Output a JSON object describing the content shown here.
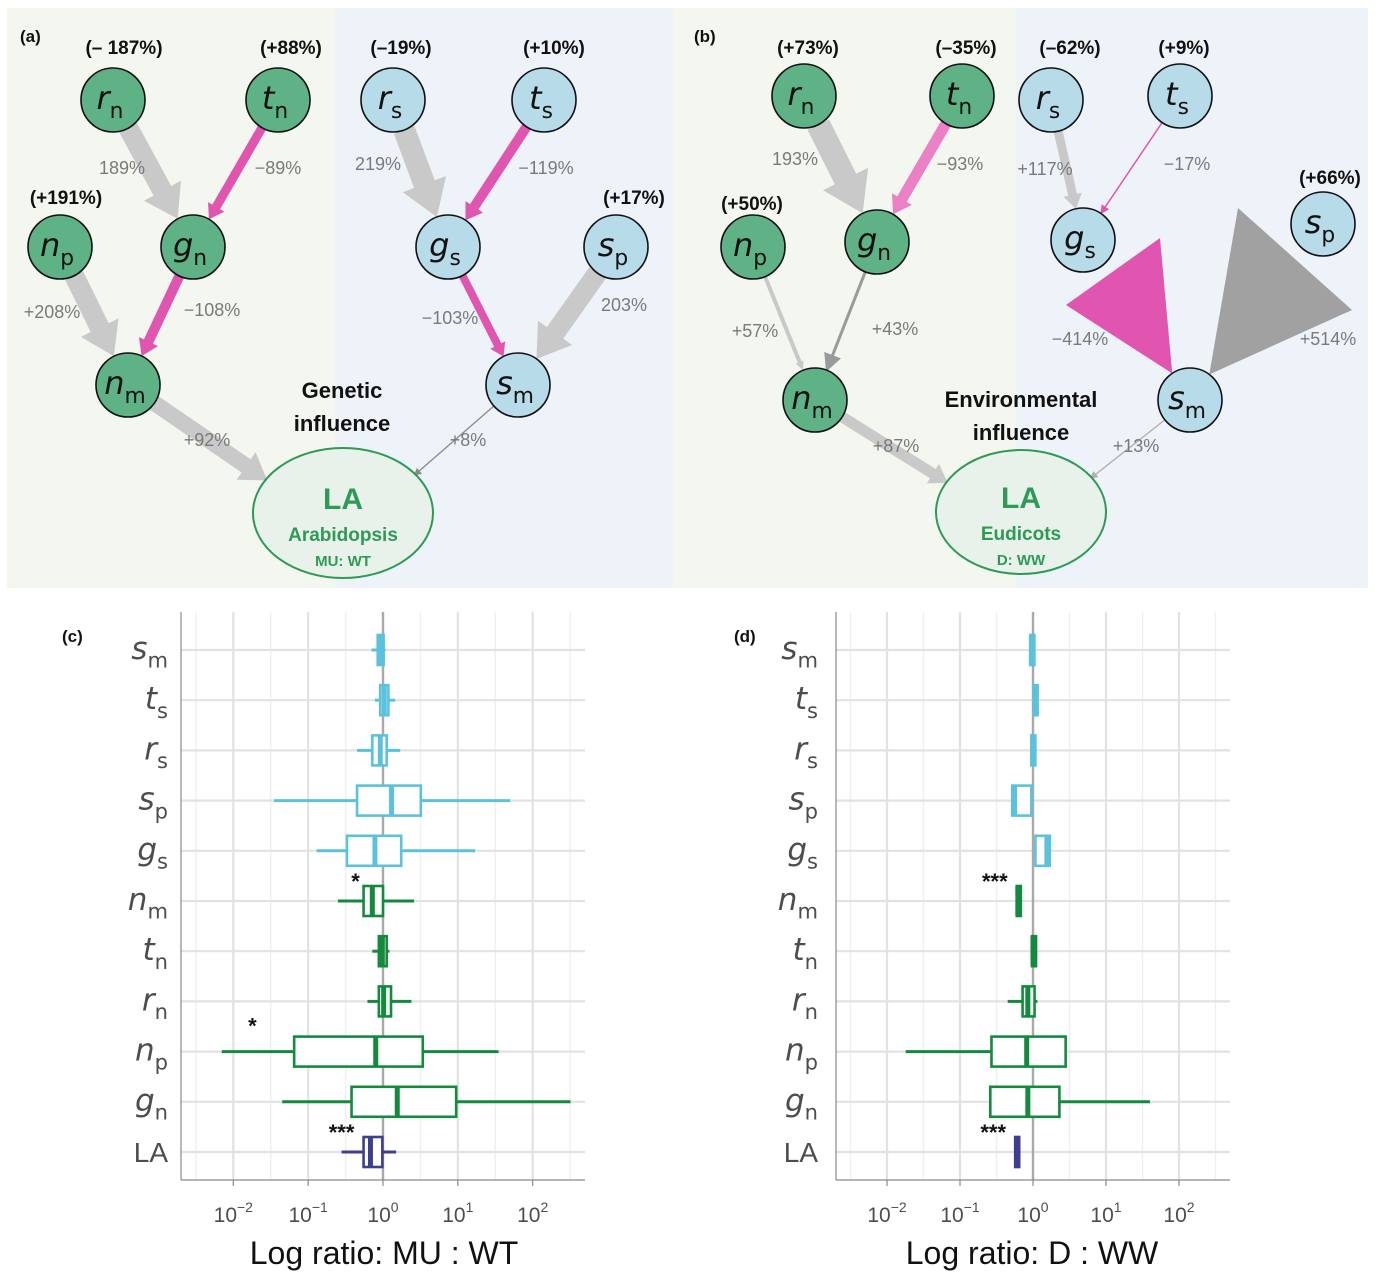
{
  "colors": {
    "green_node": "#5fb286",
    "blue_node": "#b7dbe8",
    "pink_edge": "#e055b0",
    "grey_edge": "#c9c9c9",
    "dark_grey_edge": "#9a9a9a",
    "green_box": "#138a3e",
    "blue_box": "#5bc2de",
    "navy_box": "#3f3f8f",
    "la_text": "#2e9a55",
    "panel_green_bg": "#f4f7ef",
    "panel_blue_bg": "#eef3f9"
  },
  "diagrams": [
    {
      "panel_label": "(a)",
      "center_label_1": "Genetic",
      "center_label_2": "influence",
      "la": {
        "title": "LA",
        "line1": "Arabidopsis",
        "line2": "MU: WT"
      },
      "node_changes": {
        "rn": "(– 187%)",
        "tn": "(+88%)",
        "np": "(+191%)",
        "rs": "(–19%)",
        "ts": "(+10%)",
        "sp": "(+17%)"
      },
      "edge_labels": {
        "rn_gn": "189%",
        "tn_gn": "−89%",
        "np_nm": "+208%",
        "gn_nm": "−108%",
        "nm_la": "+92%",
        "rs_gs": "219%",
        "ts_gs": "−119%",
        "gs_sm": "−103%",
        "sp_sm": "203%",
        "sm_la": "+8%"
      }
    },
    {
      "panel_label": "(b)",
      "center_label_1": "Environmental",
      "center_label_2": "influence",
      "la": {
        "title": "LA",
        "line1": "Eudicots",
        "line2": "D: WW"
      },
      "node_changes": {
        "rn": "(+73%)",
        "tn": "(–35%)",
        "np": "(+50%)",
        "rs": "(–62%)",
        "ts": "(+9%)",
        "sp": "(+66%)"
      },
      "edge_labels": {
        "rn_gn": "193%",
        "tn_gn": "−93%",
        "np_nm": "+57%",
        "gn_nm": "+43%",
        "nm_la": "+87%",
        "rs_gs": "+117%",
        "ts_gs": "−17%",
        "gs_sm": "−414%",
        "sp_sm": "+514%",
        "sm_la": "+13%"
      }
    }
  ],
  "node_letters": {
    "rn": [
      "r",
      "n"
    ],
    "tn": [
      "t",
      "n"
    ],
    "np": [
      "n",
      "p"
    ],
    "gn": [
      "g",
      "n"
    ],
    "nm": [
      "n",
      "m"
    ],
    "rs": [
      "r",
      "s"
    ],
    "ts": [
      "t",
      "s"
    ],
    "gs": [
      "g",
      "s"
    ],
    "sp": [
      "s",
      "p"
    ],
    "sm": [
      "s",
      "m"
    ]
  },
  "chart_data": [
    {
      "type": "box",
      "panel_label": "(c)",
      "xlabel": "Log ratio: MU : WT",
      "x_scale": "log10",
      "xlim": [
        0.002,
        500
      ],
      "x_ticks": [
        {
          "v": 0.01,
          "base": "10",
          "exp": "−2"
        },
        {
          "v": 0.1,
          "base": "10",
          "exp": "−1"
        },
        {
          "v": 1,
          "base": "10",
          "exp": "0"
        },
        {
          "v": 10,
          "base": "10",
          "exp": "1"
        },
        {
          "v": 100,
          "base": "10",
          "exp": "2"
        }
      ],
      "reference_line": 1,
      "rows": [
        {
          "var": [
            "s",
            "m"
          ],
          "color": "blue",
          "whisker_low": 0.7,
          "q1": 0.85,
          "median": 0.92,
          "q3": 1.02,
          "whisker_high": 1.08,
          "sig": ""
        },
        {
          "var": [
            "t",
            "s"
          ],
          "color": "blue",
          "whisker_low": 0.78,
          "q1": 0.92,
          "median": 1.04,
          "q3": 1.18,
          "whisker_high": 1.45,
          "sig": ""
        },
        {
          "var": [
            "r",
            "s"
          ],
          "color": "blue",
          "whisker_low": 0.45,
          "q1": 0.72,
          "median": 0.92,
          "q3": 1.12,
          "whisker_high": 1.7,
          "sig": ""
        },
        {
          "var": [
            "s",
            "p"
          ],
          "color": "blue",
          "whisker_low": 0.035,
          "q1": 0.45,
          "median": 1.3,
          "q3": 3.2,
          "whisker_high": 50,
          "sig": ""
        },
        {
          "var": [
            "g",
            "s"
          ],
          "color": "blue",
          "whisker_low": 0.13,
          "q1": 0.33,
          "median": 0.78,
          "q3": 1.75,
          "whisker_high": 17,
          "sig": ""
        },
        {
          "var": [
            "n",
            "m"
          ],
          "color": "green",
          "whisker_low": 0.25,
          "q1": 0.55,
          "median": 0.72,
          "q3": 1.0,
          "whisker_high": 2.6,
          "sig": "*"
        },
        {
          "var": [
            "t",
            "n"
          ],
          "color": "green",
          "whisker_low": 0.72,
          "q1": 0.88,
          "median": 0.98,
          "q3": 1.12,
          "whisker_high": 1.22,
          "sig": ""
        },
        {
          "var": [
            "r",
            "n"
          ],
          "color": "green",
          "whisker_low": 0.62,
          "q1": 0.88,
          "median": 1.02,
          "q3": 1.28,
          "whisker_high": 2.4,
          "sig": ""
        },
        {
          "var": [
            "n",
            "p"
          ],
          "color": "green",
          "whisker_low": 0.007,
          "q1": 0.065,
          "median": 0.8,
          "q3": 3.4,
          "whisker_high": 35,
          "sig": "*"
        },
        {
          "var": [
            "g",
            "n"
          ],
          "color": "green",
          "whisker_low": 0.045,
          "q1": 0.38,
          "median": 1.55,
          "q3": 9.5,
          "whisker_high": 320,
          "sig": ""
        },
        {
          "var": [
            "LA"
          ],
          "color": "navy",
          "whisker_low": 0.28,
          "q1": 0.55,
          "median": 0.68,
          "q3": 0.98,
          "whisker_high": 1.5,
          "sig": "***"
        }
      ]
    },
    {
      "type": "box",
      "panel_label": "(d)",
      "xlabel": "Log ratio: D : WW",
      "x_scale": "log10",
      "xlim": [
        0.002,
        500
      ],
      "x_ticks": [
        {
          "v": 0.01,
          "base": "10",
          "exp": "−2"
        },
        {
          "v": 0.1,
          "base": "10",
          "exp": "−1"
        },
        {
          "v": 1,
          "base": "10",
          "exp": "0"
        },
        {
          "v": 10,
          "base": "10",
          "exp": "1"
        },
        {
          "v": 100,
          "base": "10",
          "exp": "2"
        }
      ],
      "reference_line": 1,
      "rows": [
        {
          "var": [
            "s",
            "m"
          ],
          "color": "blue",
          "whisker_low": 0.9,
          "q1": 0.92,
          "median": 0.95,
          "q3": 0.98,
          "whisker_high": 1.0,
          "sig": ""
        },
        {
          "var": [
            "t",
            "s"
          ],
          "color": "blue",
          "whisker_low": 1.0,
          "q1": 1.02,
          "median": 1.08,
          "q3": 1.12,
          "whisker_high": 1.15,
          "sig": ""
        },
        {
          "var": [
            "r",
            "s"
          ],
          "color": "blue",
          "whisker_low": 0.92,
          "q1": 0.95,
          "median": 0.99,
          "q3": 1.04,
          "whisker_high": 1.08,
          "sig": ""
        },
        {
          "var": [
            "s",
            "p"
          ],
          "color": "blue",
          "whisker_low": 0.5,
          "q1": 0.52,
          "median": 0.56,
          "q3": 0.95,
          "whisker_high": 0.98,
          "sig": ""
        },
        {
          "var": [
            "g",
            "s"
          ],
          "color": "blue",
          "whisker_low": 1.05,
          "q1": 1.08,
          "median": 1.55,
          "q3": 1.7,
          "whisker_high": 1.75,
          "sig": ""
        },
        {
          "var": [
            "n",
            "m"
          ],
          "color": "green",
          "whisker_low": 0.58,
          "q1": 0.6,
          "median": 0.62,
          "q3": 0.65,
          "whisker_high": 0.67,
          "sig": "***"
        },
        {
          "var": [
            "t",
            "n"
          ],
          "color": "green",
          "whisker_low": 0.95,
          "q1": 0.97,
          "median": 1.0,
          "q3": 1.03,
          "whisker_high": 1.05,
          "sig": ""
        },
        {
          "var": [
            "r",
            "n"
          ],
          "color": "green",
          "whisker_low": 0.45,
          "q1": 0.72,
          "median": 0.85,
          "q3": 1.05,
          "whisker_high": 1.15,
          "sig": ""
        },
        {
          "var": [
            "n",
            "p"
          ],
          "color": "green",
          "whisker_low": 0.018,
          "q1": 0.27,
          "median": 0.82,
          "q3": 2.8,
          "whisker_high": 2.8,
          "sig": ""
        },
        {
          "var": [
            "g",
            "n"
          ],
          "color": "green",
          "whisker_low": 0.26,
          "q1": 0.26,
          "median": 0.85,
          "q3": 2.3,
          "whisker_high": 40,
          "sig": ""
        },
        {
          "var": [
            "LA"
          ],
          "color": "navy",
          "whisker_low": 0.55,
          "q1": 0.57,
          "median": 0.6,
          "q3": 0.63,
          "whisker_high": 0.66,
          "sig": "***"
        }
      ]
    }
  ]
}
